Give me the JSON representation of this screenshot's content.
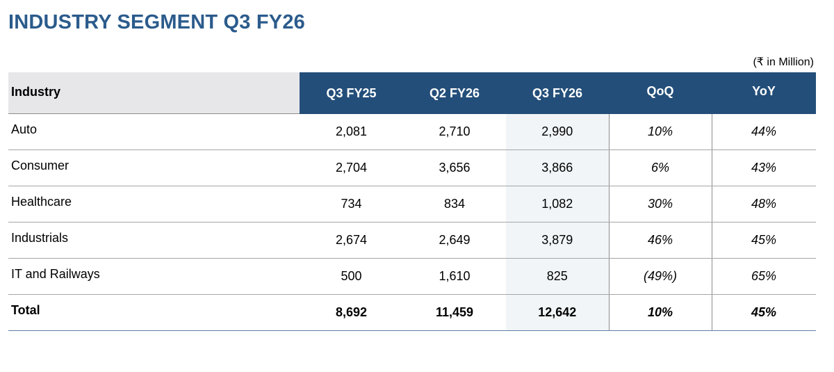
{
  "title": "INDUSTRY SEGMENT Q3 FY26",
  "unit_note": "(₹ in Million)",
  "columns": [
    "Industry",
    "Q3 FY25",
    "Q2 FY26",
    "Q3 FY26",
    "QoQ",
    "YoY"
  ],
  "rows": [
    {
      "industry": "Auto",
      "q3fy25": "2,081",
      "q2fy26": "2,710",
      "q3fy26": "2,990",
      "qoq": "10%",
      "yoy": "44%"
    },
    {
      "industry": "Consumer",
      "q3fy25": "2,704",
      "q2fy26": "3,656",
      "q3fy26": "3,866",
      "qoq": "6%",
      "yoy": "43%"
    },
    {
      "industry": "Healthcare",
      "q3fy25": "734",
      "q2fy26": "834",
      "q3fy26": "1,082",
      "qoq": "30%",
      "yoy": "48%"
    },
    {
      "industry": "Industrials",
      "q3fy25": "2,674",
      "q2fy26": "2,649",
      "q3fy26": "3,879",
      "qoq": "46%",
      "yoy": "45%"
    },
    {
      "industry": "IT and Railways",
      "q3fy25": "500",
      "q2fy26": "1,610",
      "q3fy26": "825",
      "qoq": "(49%)",
      "yoy": "65%"
    }
  ],
  "total": {
    "industry": "Total",
    "q3fy25": "8,692",
    "q2fy26": "11,459",
    "q3fy26": "12,642",
    "qoq": "10%",
    "yoy": "45%"
  },
  "colors": {
    "title": "#2b5b8c",
    "header_bg": "#234e79",
    "industry_header_bg": "#e7e7e9",
    "highlight_column_bg": "#f1f5f8"
  }
}
